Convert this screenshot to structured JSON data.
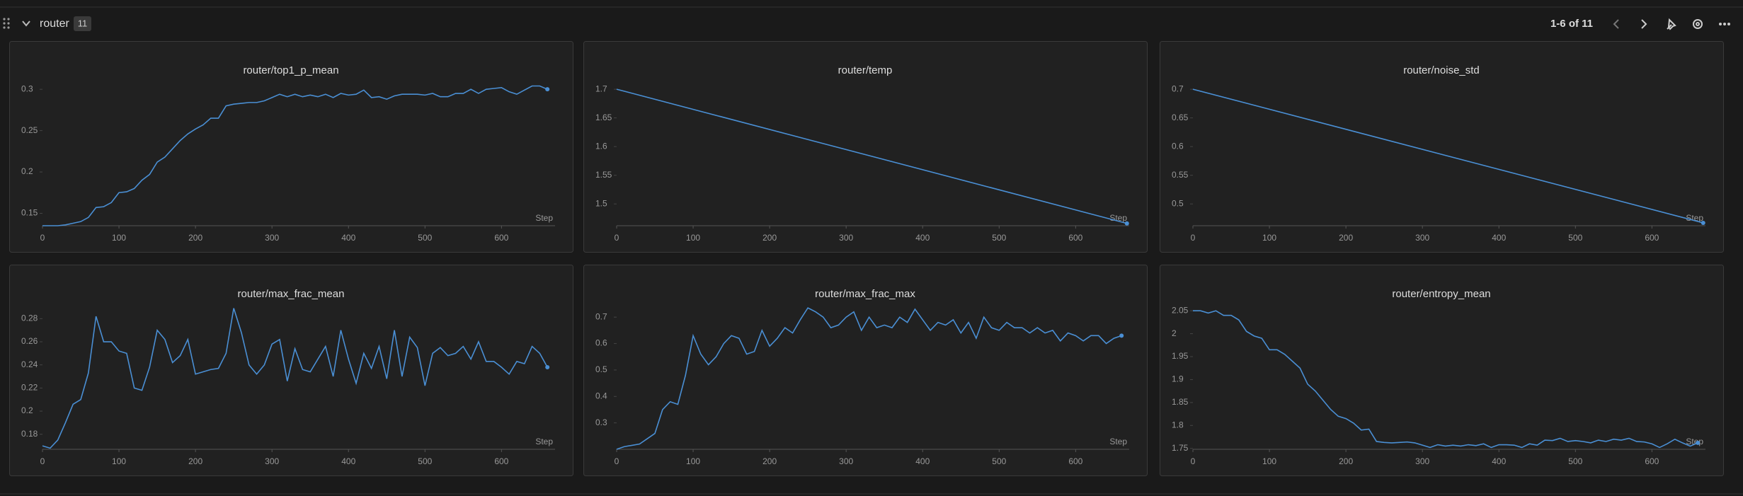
{
  "header": {
    "title": "router",
    "count": "11",
    "pagination": "1-6 of 11"
  },
  "chart_data": [
    {
      "type": "line",
      "title": "router/top1_p_mean",
      "x_label": "Step",
      "color": "#4a8fd4",
      "xlim": [
        0,
        670
      ],
      "xticks": [
        0,
        100,
        200,
        300,
        400,
        500,
        600
      ],
      "ylim": [
        0.135,
        0.307
      ],
      "yticks": [
        0.15,
        0.2,
        0.25,
        0.3
      ],
      "x": [
        0,
        10,
        20,
        30,
        40,
        50,
        60,
        70,
        80,
        90,
        100,
        110,
        120,
        130,
        140,
        150,
        160,
        170,
        180,
        190,
        200,
        210,
        220,
        230,
        240,
        250,
        260,
        270,
        280,
        290,
        300,
        310,
        320,
        330,
        340,
        350,
        360,
        370,
        380,
        390,
        400,
        410,
        420,
        430,
        440,
        450,
        460,
        470,
        480,
        490,
        500,
        510,
        520,
        530,
        540,
        550,
        560,
        570,
        580,
        590,
        600,
        610,
        620,
        630,
        640,
        650,
        660
      ],
      "values": [
        0.135,
        0.135,
        0.135,
        0.136,
        0.138,
        0.14,
        0.145,
        0.157,
        0.158,
        0.163,
        0.175,
        0.176,
        0.18,
        0.19,
        0.197,
        0.212,
        0.218,
        0.228,
        0.238,
        0.246,
        0.252,
        0.257,
        0.265,
        0.265,
        0.28,
        0.282,
        0.283,
        0.284,
        0.284,
        0.286,
        0.29,
        0.294,
        0.291,
        0.294,
        0.291,
        0.293,
        0.291,
        0.294,
        0.29,
        0.295,
        0.293,
        0.294,
        0.299,
        0.29,
        0.291,
        0.288,
        0.292,
        0.294,
        0.294,
        0.294,
        0.293,
        0.295,
        0.291,
        0.291,
        0.295,
        0.295,
        0.3,
        0.295,
        0.3,
        0.301,
        0.302,
        0.297,
        0.294,
        0.299,
        0.304,
        0.304,
        0.3
      ]
    },
    {
      "type": "line",
      "title": "router/temp",
      "x_label": "Step",
      "color": "#4a8fd4",
      "xlim": [
        0,
        670
      ],
      "xticks": [
        0,
        100,
        200,
        300,
        400,
        500,
        600
      ],
      "ylim": [
        1.462,
        1.71
      ],
      "yticks": [
        1.5,
        1.55,
        1.6,
        1.65,
        1.7
      ],
      "x": [
        0,
        667
      ],
      "values": [
        1.7,
        1.466
      ]
    },
    {
      "type": "line",
      "title": "router/noise_std",
      "x_label": "Step",
      "color": "#4a8fd4",
      "xlim": [
        0,
        670
      ],
      "xticks": [
        0,
        100,
        200,
        300,
        400,
        500,
        600
      ],
      "ylim": [
        0.462,
        0.71
      ],
      "yticks": [
        0.5,
        0.55,
        0.6,
        0.65,
        0.7
      ],
      "x": [
        0,
        667
      ],
      "values": [
        0.7,
        0.467
      ]
    },
    {
      "type": "line",
      "title": "router/max_frac_mean",
      "x_label": "Step",
      "color": "#4a8fd4",
      "xlim": [
        0,
        670
      ],
      "xticks": [
        0,
        100,
        200,
        300,
        400,
        500,
        600
      ],
      "ylim": [
        0.167,
        0.29
      ],
      "yticks": [
        0.18,
        0.2,
        0.22,
        0.24,
        0.26,
        0.28
      ],
      "x": [
        0,
        10,
        20,
        30,
        40,
        50,
        60,
        70,
        80,
        90,
        100,
        110,
        120,
        130,
        140,
        150,
        160,
        170,
        180,
        190,
        200,
        210,
        220,
        230,
        240,
        250,
        260,
        270,
        280,
        290,
        300,
        310,
        320,
        330,
        340,
        350,
        360,
        370,
        380,
        390,
        400,
        410,
        420,
        430,
        440,
        450,
        460,
        470,
        480,
        490,
        500,
        510,
        520,
        530,
        540,
        550,
        560,
        570,
        580,
        590,
        600,
        610,
        620,
        630,
        640,
        650,
        660
      ],
      "values": [
        0.17,
        0.168,
        0.175,
        0.19,
        0.206,
        0.21,
        0.233,
        0.282,
        0.26,
        0.26,
        0.252,
        0.25,
        0.22,
        0.218,
        0.238,
        0.27,
        0.262,
        0.242,
        0.248,
        0.262,
        0.232,
        0.234,
        0.236,
        0.237,
        0.25,
        0.289,
        0.268,
        0.24,
        0.232,
        0.24,
        0.258,
        0.262,
        0.226,
        0.254,
        0.236,
        0.234,
        0.245,
        0.256,
        0.23,
        0.27,
        0.245,
        0.224,
        0.25,
        0.237,
        0.256,
        0.228,
        0.27,
        0.23,
        0.264,
        0.255,
        0.222,
        0.25,
        0.255,
        0.248,
        0.25,
        0.256,
        0.245,
        0.26,
        0.243,
        0.243,
        0.238,
        0.232,
        0.243,
        0.241,
        0.256,
        0.25,
        0.238
      ]
    },
    {
      "type": "line",
      "title": "router/max_frac_max",
      "x_label": "Step",
      "color": "#4a8fd4",
      "xlim": [
        0,
        670
      ],
      "xticks": [
        0,
        100,
        200,
        300,
        400,
        500,
        600
      ],
      "ylim": [
        0.2,
        0.738
      ],
      "yticks": [
        0.3,
        0.4,
        0.5,
        0.6,
        0.7
      ],
      "x": [
        0,
        10,
        20,
        30,
        40,
        50,
        60,
        70,
        80,
        90,
        100,
        110,
        120,
        130,
        140,
        150,
        160,
        170,
        180,
        190,
        200,
        210,
        220,
        230,
        240,
        250,
        260,
        270,
        280,
        290,
        300,
        310,
        320,
        330,
        340,
        350,
        360,
        370,
        380,
        390,
        400,
        410,
        420,
        430,
        440,
        450,
        460,
        470,
        480,
        490,
        500,
        510,
        520,
        530,
        540,
        550,
        560,
        570,
        580,
        590,
        600,
        610,
        620,
        630,
        640,
        650,
        660
      ],
      "values": [
        0.2,
        0.21,
        0.215,
        0.22,
        0.24,
        0.26,
        0.35,
        0.38,
        0.37,
        0.48,
        0.63,
        0.56,
        0.52,
        0.55,
        0.6,
        0.63,
        0.62,
        0.56,
        0.57,
        0.65,
        0.59,
        0.62,
        0.66,
        0.64,
        0.69,
        0.735,
        0.72,
        0.7,
        0.66,
        0.67,
        0.7,
        0.72,
        0.65,
        0.7,
        0.66,
        0.67,
        0.66,
        0.7,
        0.68,
        0.73,
        0.69,
        0.65,
        0.68,
        0.67,
        0.69,
        0.64,
        0.68,
        0.62,
        0.7,
        0.66,
        0.65,
        0.68,
        0.66,
        0.66,
        0.64,
        0.66,
        0.64,
        0.65,
        0.61,
        0.64,
        0.63,
        0.61,
        0.63,
        0.63,
        0.6,
        0.62,
        0.63
      ]
    },
    {
      "type": "line",
      "title": "router/entropy_mean",
      "x_label": "Step",
      "color": "#4a8fd4",
      "xlim": [
        0,
        670
      ],
      "xticks": [
        0,
        100,
        200,
        300,
        400,
        500,
        600
      ],
      "ylim": [
        1.748,
        2.058
      ],
      "yticks": [
        1.75,
        1.8,
        1.85,
        1.9,
        1.95,
        2,
        2.05
      ],
      "x": [
        0,
        10,
        20,
        30,
        40,
        50,
        60,
        70,
        80,
        90,
        100,
        110,
        120,
        130,
        140,
        150,
        160,
        170,
        180,
        190,
        200,
        210,
        220,
        230,
        240,
        250,
        260,
        270,
        280,
        290,
        300,
        310,
        320,
        330,
        340,
        350,
        360,
        370,
        380,
        390,
        400,
        410,
        420,
        430,
        440,
        450,
        460,
        470,
        480,
        490,
        500,
        510,
        520,
        530,
        540,
        550,
        560,
        570,
        580,
        590,
        600,
        610,
        620,
        630,
        640,
        650,
        660
      ],
      "values": [
        2.05,
        2.05,
        2.045,
        2.05,
        2.04,
        2.04,
        2.03,
        2.005,
        1.995,
        1.99,
        1.965,
        1.965,
        1.955,
        1.94,
        1.925,
        1.89,
        1.875,
        1.855,
        1.835,
        1.82,
        1.815,
        1.805,
        1.79,
        1.792,
        1.765,
        1.763,
        1.762,
        1.763,
        1.764,
        1.762,
        1.757,
        1.752,
        1.758,
        1.755,
        1.757,
        1.755,
        1.758,
        1.756,
        1.76,
        1.752,
        1.758,
        1.758,
        1.757,
        1.752,
        1.76,
        1.757,
        1.768,
        1.767,
        1.772,
        1.765,
        1.767,
        1.765,
        1.762,
        1.768,
        1.765,
        1.77,
        1.768,
        1.772,
        1.765,
        1.764,
        1.76,
        1.752,
        1.76,
        1.77,
        1.762,
        1.755,
        1.762
      ]
    }
  ]
}
